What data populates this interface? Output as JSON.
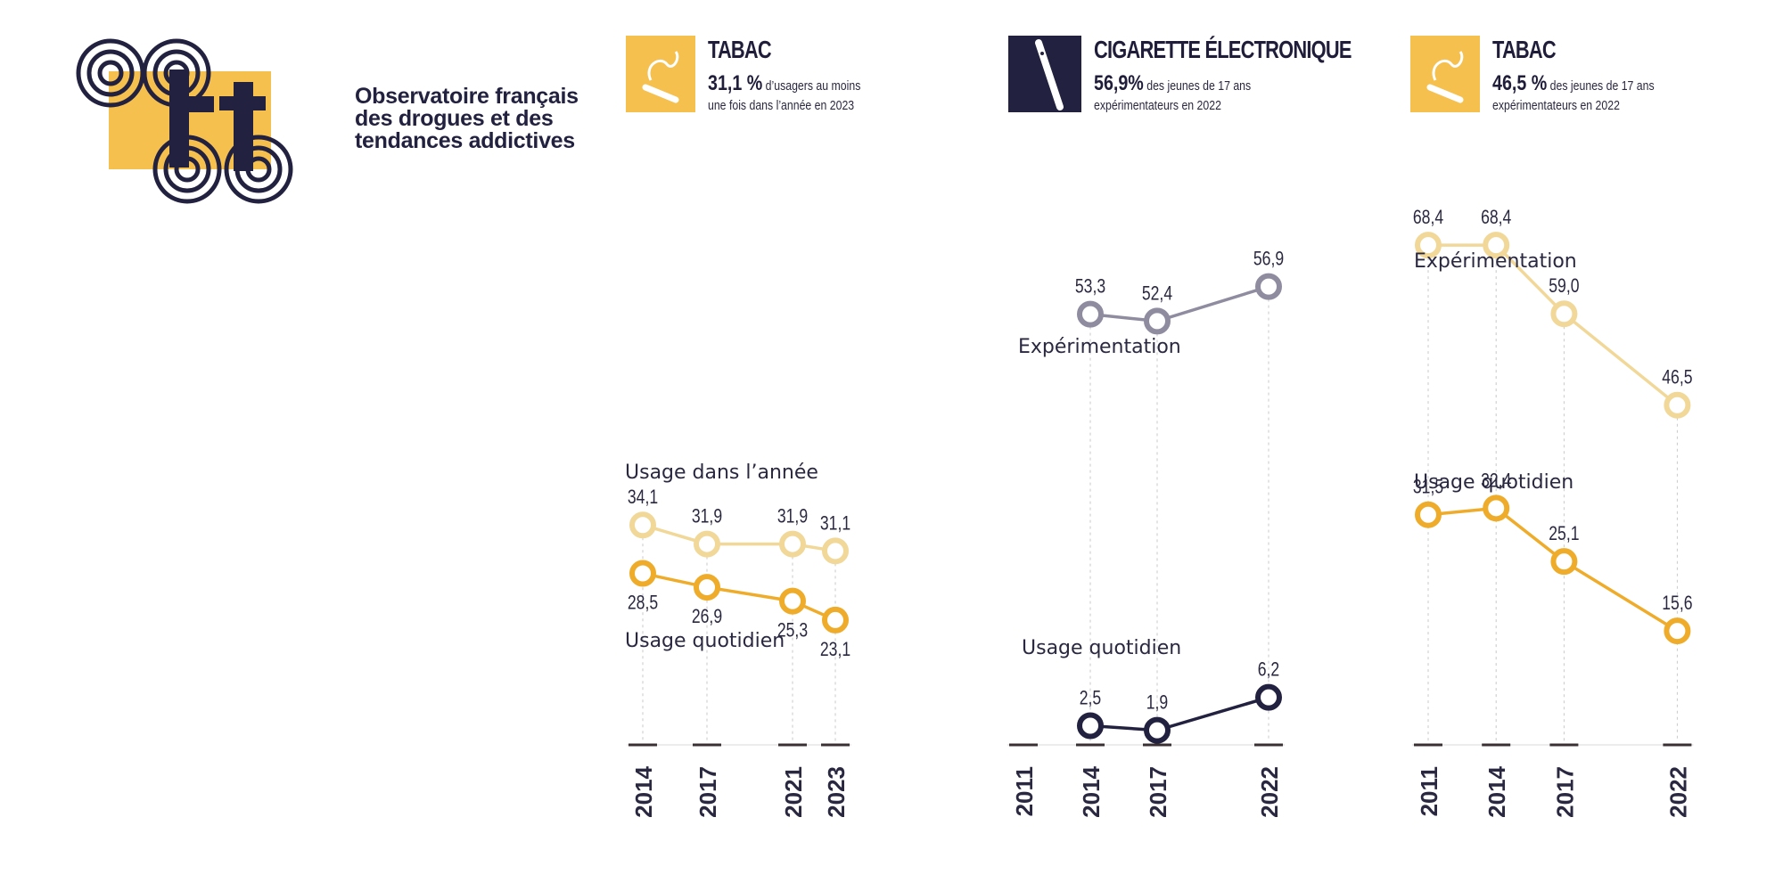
{
  "logo": {
    "text_lines": [
      "Observatoire français",
      "des drogues et des",
      "tendances addictives"
    ],
    "colors": {
      "yellow": "#f6c04e",
      "dark": "#22213f"
    }
  },
  "headers": [
    {
      "icon": "cigarette-icon",
      "icon_bg": "#f6c04e",
      "title": "TABAC",
      "value": "31,1 %",
      "line1_rest": " d’usagers au moins",
      "line2": "une fois dans l’année en 2023"
    },
    {
      "icon": "e-cigarette-icon",
      "icon_bg": "#22213f",
      "title": "CIGARETTE ÉLECTRONIQUE",
      "value": "56,9%",
      "line1_rest": " des jeunes de 17 ans",
      "line2": "expérimentateurs en 2022"
    },
    {
      "icon": "cigarette-icon",
      "icon_bg": "#f6c04e",
      "title": "TABAC",
      "value": "46,5 %",
      "line1_rest": " des jeunes de 17 ans",
      "line2": "expérimentateurs en 2022"
    }
  ],
  "chart_data": [
    {
      "type": "line",
      "x": [
        "2014",
        "2017",
        "2021",
        "2023"
      ],
      "x_axis_values": [
        "2014",
        "2017",
        "2021",
        "2023"
      ],
      "ylim": [
        0,
        100
      ],
      "series": [
        {
          "name": "Usage dans l’année",
          "values": [
            34.1,
            31.9,
            31.9,
            31.1
          ],
          "labels": [
            "34,1",
            "31,9",
            "31,9",
            "31,1"
          ],
          "color": "#f1d899"
        },
        {
          "name": "Usage quotidien",
          "values": [
            28.5,
            26.9,
            25.3,
            23.1
          ],
          "labels": [
            "28,5",
            "26,9",
            "25,3",
            "23,1"
          ],
          "color": "#eeac2a"
        }
      ]
    },
    {
      "type": "line",
      "x": [
        "2014",
        "2017",
        "2022"
      ],
      "x_axis_values": [
        "2011",
        "2014",
        "2017",
        "2022"
      ],
      "ylim": [
        0,
        100
      ],
      "series": [
        {
          "name": "Expérimentation",
          "values": [
            53.3,
            52.4,
            56.9
          ],
          "labels": [
            "53,3",
            "52,4",
            "56,9"
          ],
          "color": "#8f8ca0"
        },
        {
          "name": "Usage quotidien",
          "values": [
            2.5,
            1.9,
            6.2
          ],
          "labels": [
            "2,5",
            "1,9",
            "6,2"
          ],
          "color": "#22213f"
        }
      ]
    },
    {
      "type": "line",
      "x": [
        "2011",
        "2014",
        "2017",
        "2022"
      ],
      "x_axis_values": [
        "2011",
        "2014",
        "2017",
        "2022"
      ],
      "ylim": [
        0,
        100
      ],
      "series": [
        {
          "name": "Expérimentation",
          "values": [
            68.4,
            68.4,
            59.0,
            46.5
          ],
          "labels": [
            "68,4",
            "68,4",
            "59,0",
            "46,5"
          ],
          "color": "#f1d899"
        },
        {
          "name": "Usage quotidien",
          "values": [
            31.5,
            32.4,
            25.1,
            15.6
          ],
          "labels": [
            "31,5",
            "32,4",
            "25,1",
            "15,6"
          ],
          "color": "#eeac2a"
        }
      ]
    }
  ]
}
